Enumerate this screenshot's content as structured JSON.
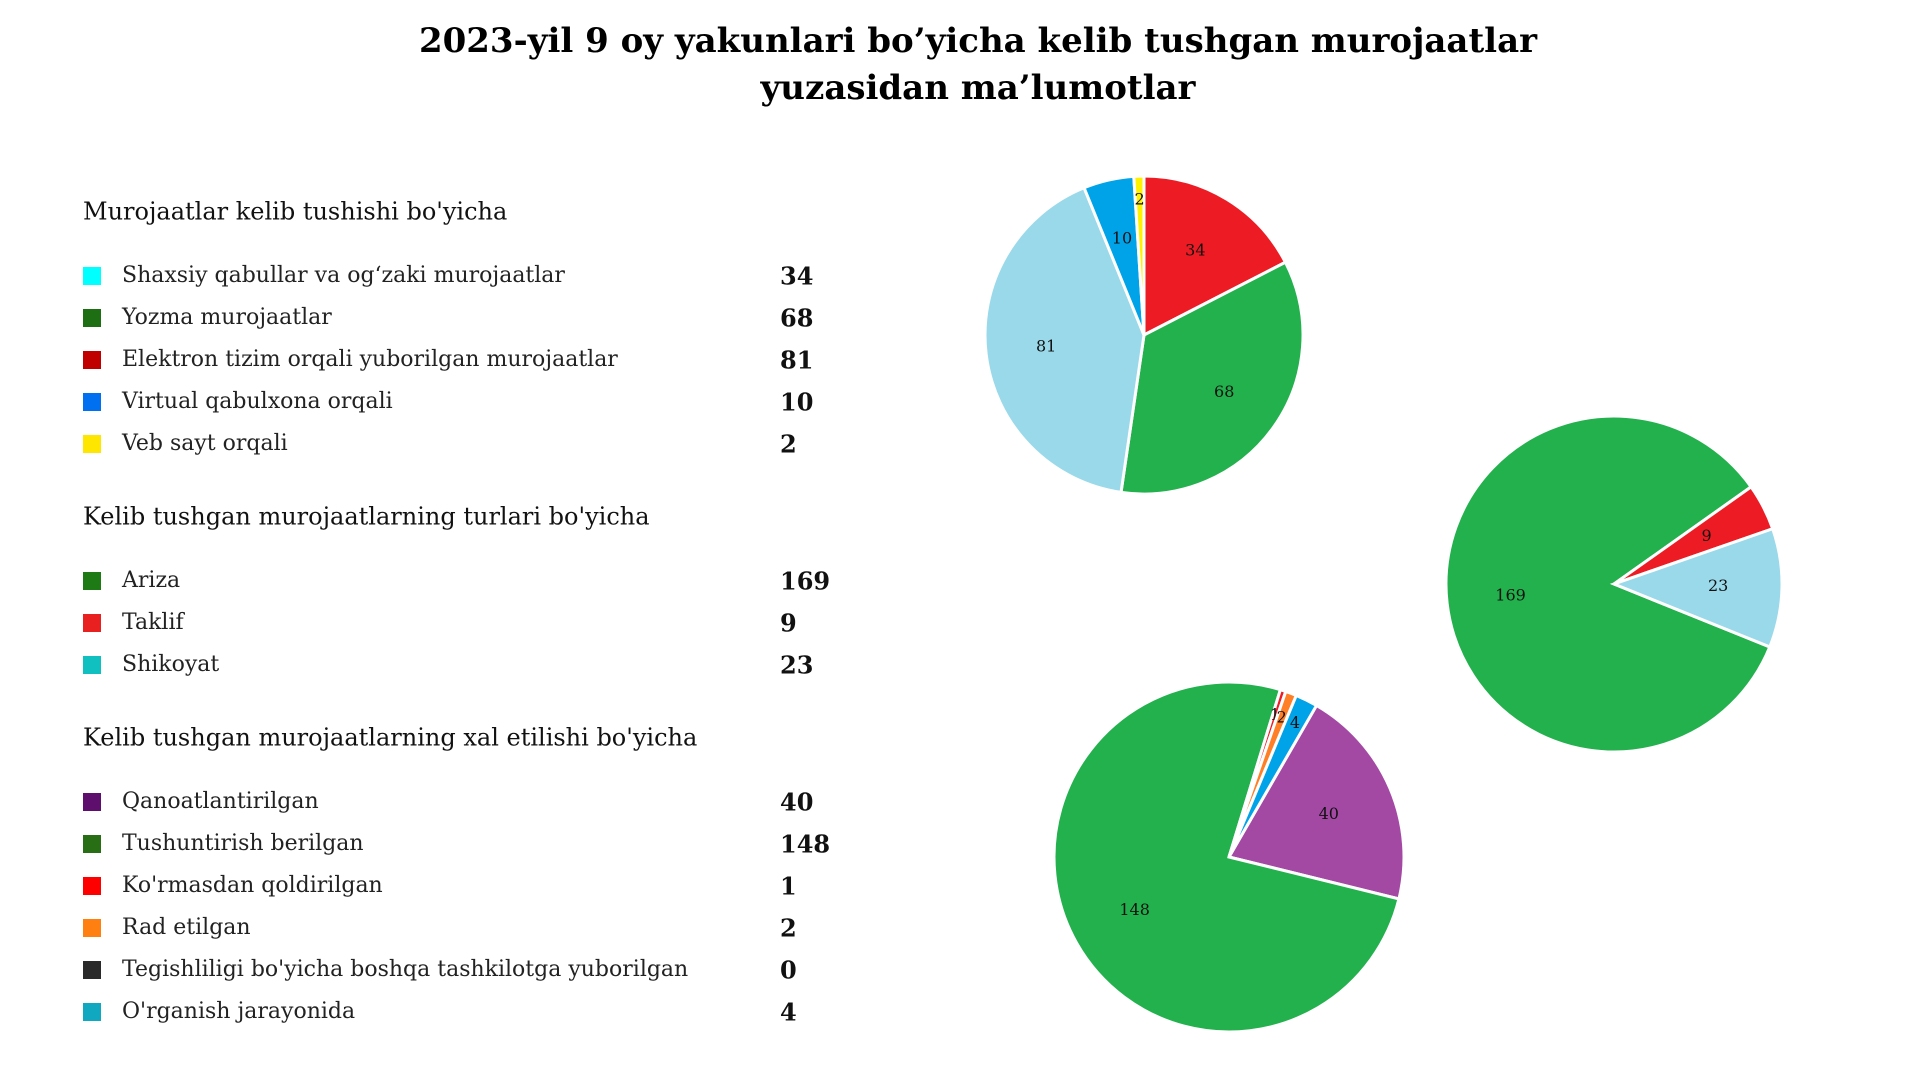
{
  "title": [
    "2023-yil 9 oy yakunlari bo’yicha kelib tushgan murojaatlar",
    "yuzasidan ma’lumotlar"
  ],
  "chart_data": [
    {
      "type": "pie",
      "title": "Murojaatlar kelib tushishi bo'yicha",
      "categories": [
        "Shaxsiy qabullar va og‘zaki murojaatlar",
        "Yozma murojaatlar",
        "Elektron tizim orqali yuborilgan murojaatlar",
        "Virtual qabulxona orqali",
        "Veb sayt orqali"
      ],
      "values": [
        34,
        68,
        81,
        10,
        2
      ],
      "colors": [
        "#ed1c24",
        "#22b14c",
        "#99d9ea",
        "#00a2e8",
        "#fff200"
      ],
      "legend_colors": [
        "#00ffff",
        "#1e6e14",
        "#c00000",
        "#0070f0",
        "#ffe600"
      ]
    },
    {
      "type": "pie",
      "title": "Kelib tushgan murojaatlarning turlari bo'yicha",
      "categories": [
        "Ariza",
        "Taklif",
        "Shikoyat"
      ],
      "values": [
        169,
        9,
        23
      ],
      "colors": [
        "#22b14c",
        "#ed1c24",
        "#99d9ea"
      ],
      "legend_colors": [
        "#1e7a14",
        "#e82020",
        "#10c0c0"
      ]
    },
    {
      "type": "pie",
      "title": "Kelib tushgan murojaatlarning xal etilishi bo'yicha",
      "categories": [
        "Qanoatlantirilgan",
        "Tushuntirish berilgan",
        "Ko'rmasdan qoldirilgan",
        "Rad etilgan",
        "Tegishliligi bo'yicha boshqa tashkilotga yuborilgan",
        "O'rganish jarayonida"
      ],
      "values": [
        40,
        148,
        1,
        2,
        0,
        4
      ],
      "colors": [
        "#a349a4",
        "#22b14c",
        "#ed1c24",
        "#ff7f27",
        "#333333",
        "#00a2e8"
      ],
      "legend_colors": [
        "#5e0f6e",
        "#286e14",
        "#ff0000",
        "#ff7f10",
        "#2a2a2a",
        "#10a8c0"
      ]
    }
  ]
}
